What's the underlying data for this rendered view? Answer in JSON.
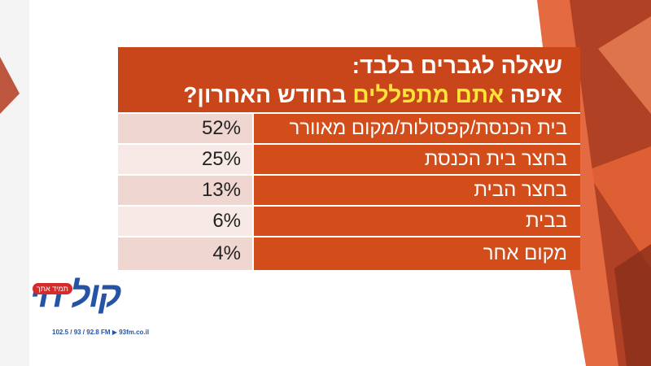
{
  "colors": {
    "header_bg": "#c9461a",
    "row_label_bg": "#d24d1a",
    "highlight_text": "#ffe23a",
    "percent_bg_a": "#f0d6d0",
    "percent_bg_b": "#f7e9e5",
    "decor_orange": "#e1542a",
    "decor_dark": "#8f3a22"
  },
  "header": {
    "line1": "שאלה לגברים בלבד:",
    "line2_before": "איפה ",
    "line2_highlight": "אתם מתפללים",
    "line2_after": " בחודש האחרון?"
  },
  "rows": [
    {
      "label": "בית הכנסת/קפסולות/מקום  מאוורר",
      "value": "52%"
    },
    {
      "label": "בחצר בית הכנסת",
      "value": "25%"
    },
    {
      "label": "בחצר הבית",
      "value": "13%"
    },
    {
      "label": "בבית",
      "value": "6%"
    },
    {
      "label": "מקום אחר",
      "value": "4%"
    }
  ],
  "logo": {
    "mark": "קול חי",
    "tagline": "תמיד אתך",
    "frequencies": "102.5 / 93 / 92.8 FM  ▶ 93fm.co.il"
  }
}
